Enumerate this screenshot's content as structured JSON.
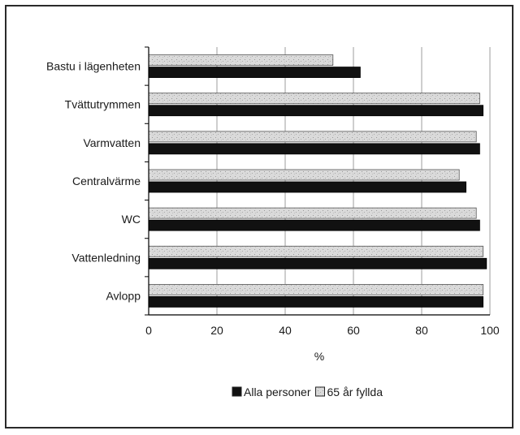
{
  "chart_data": {
    "type": "bar",
    "orientation": "horizontal",
    "categories": [
      "Bastu i lägenheten",
      "Tvättutrymmen",
      "Varmvatten",
      "Centralvärme",
      "WC",
      "Vattenledning",
      "Avlopp"
    ],
    "series": [
      {
        "name": "Alla personer",
        "values": [
          62,
          98,
          97,
          93,
          97,
          99,
          98
        ],
        "color": "#111111"
      },
      {
        "name": "65 år fyllda",
        "values": [
          54,
          97,
          96,
          91,
          96,
          98,
          98
        ],
        "color": "#d9d9d9"
      }
    ],
    "xlabel": "%",
    "ylabel": "",
    "xlim": [
      0,
      100
    ],
    "xticks": [
      0,
      20,
      40,
      60,
      80,
      100
    ],
    "grid": "vertical",
    "legend_position": "bottom"
  }
}
